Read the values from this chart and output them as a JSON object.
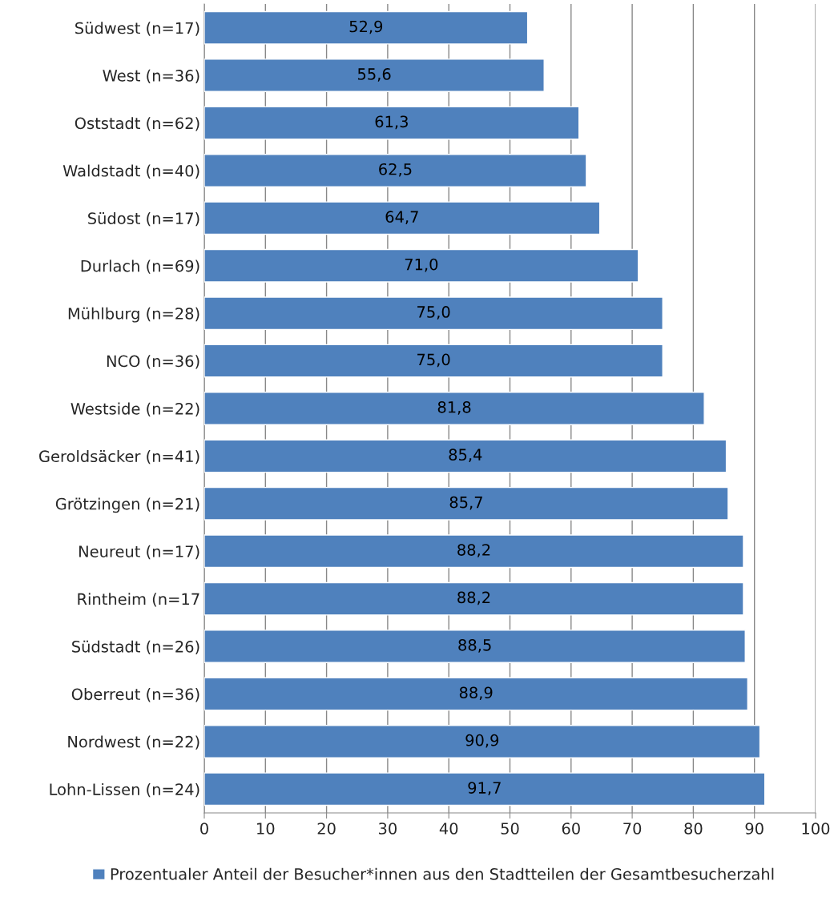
{
  "chart_data": {
    "type": "bar",
    "orientation": "horizontal",
    "categories": [
      "Südwest (n=17)",
      "West (n=36)",
      "Oststadt (n=62)",
      "Waldstadt (n=40)",
      "Südost (n=17)",
      "Durlach (n=69)",
      "Mühlburg (n=28)",
      "NCO (n=36)",
      "Westside (n=22)",
      "Geroldsäcker (n=41)",
      "Grötzingen (n=21)",
      "Neureut (n=17)",
      "Rintheim (n=17",
      "Südstadt (n=26)",
      "Oberreut (n=36)",
      "Nordwest (n=22)",
      "Lohn-Lissen (n=24)"
    ],
    "series": [
      {
        "name": "Prozentualer Anteil der Besucher*innen aus den Stadtteilen der Gesamtbesucherzahl",
        "color": "#4f81bd",
        "values": [
          52.9,
          55.6,
          61.3,
          62.5,
          64.7,
          71.0,
          75.0,
          75.0,
          81.8,
          85.4,
          85.7,
          88.2,
          88.2,
          88.5,
          88.9,
          90.9,
          91.7
        ],
        "value_labels": [
          "52,9",
          "55,6",
          "61,3",
          "62,5",
          "64,7",
          "71,0",
          "75,0",
          "75,0",
          "81,8",
          "85,4",
          "85,7",
          "88,2",
          "88,2",
          "88,5",
          "88,9",
          "90,9",
          "91,7"
        ]
      }
    ],
    "xlim": [
      0,
      100
    ],
    "xticks": [
      0,
      10,
      20,
      30,
      40,
      50,
      60,
      70,
      80,
      90,
      100
    ],
    "grid": "x",
    "legend": "bottom"
  }
}
